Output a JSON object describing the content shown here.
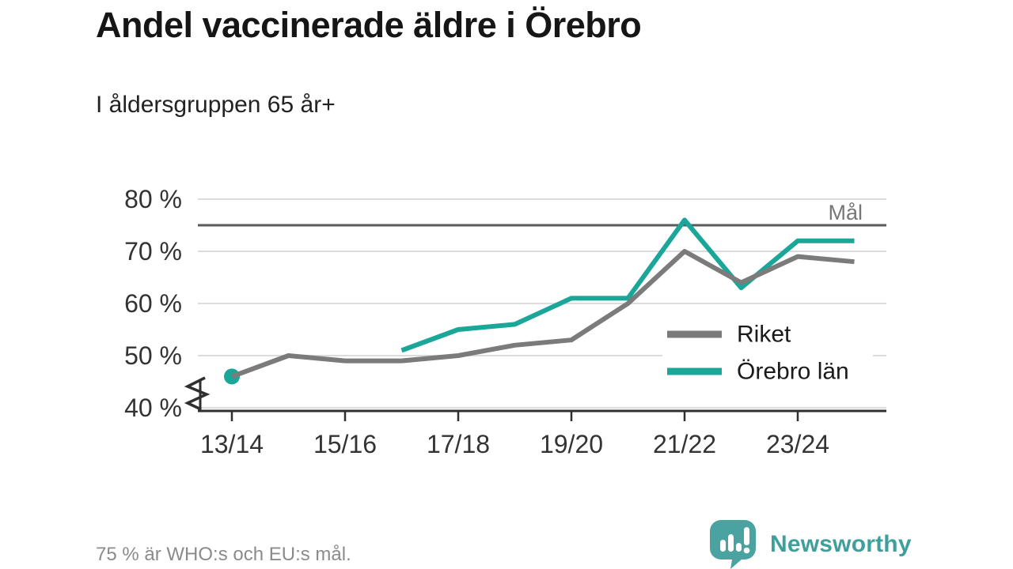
{
  "page": {
    "footer_note": "75 % är WHO:s och EU:s mål."
  },
  "logo": {
    "text": "Newsworthy",
    "icon": "newsworthy-speech-bubble-bar-chart-icon",
    "text_color": "#3f9f9c",
    "icon_color": "#4aa3a0"
  },
  "chart_data": {
    "type": "line",
    "title": "Andel vaccinerade äldre i Örebro",
    "subtitle": "I åldersgruppen 65 år+",
    "x_axis": {
      "categories": [
        "13/14",
        "14/15",
        "15/16",
        "16/17",
        "17/18",
        "18/19",
        "19/20",
        "20/21",
        "21/22",
        "22/23",
        "23/24",
        "24/25"
      ],
      "tick_labels": [
        "13/14",
        "15/16",
        "17/18",
        "19/20",
        "21/22",
        "23/24"
      ]
    },
    "y_axis": {
      "ticks": [
        80,
        70,
        60,
        50,
        40
      ],
      "suffix": " %",
      "min": 40,
      "max": 80,
      "axis_break": true
    },
    "grid": "horizontal",
    "goal_line": {
      "value": 75,
      "label": "Mål",
      "color": "#5a5a5a",
      "label_color": "#767676"
    },
    "legend_position": "inside-right",
    "series": [
      {
        "name": "Riket",
        "color": "#7b7b7b",
        "values": [
          46,
          50,
          49,
          49,
          50,
          52,
          53,
          60,
          70,
          64,
          69,
          68
        ],
        "marker_indices": []
      },
      {
        "name": "Örebro län",
        "color": "#1aa698",
        "values": [
          46,
          null,
          null,
          51,
          55,
          56,
          61,
          61,
          76,
          63,
          72,
          72
        ],
        "marker_indices": [
          0
        ]
      }
    ],
    "style": {
      "gridline_color": "#dcdcdc",
      "axis_color": "#2f2f2f",
      "tick_label_color": "#333333",
      "legend_text_color": "#1a1a1a"
    }
  }
}
